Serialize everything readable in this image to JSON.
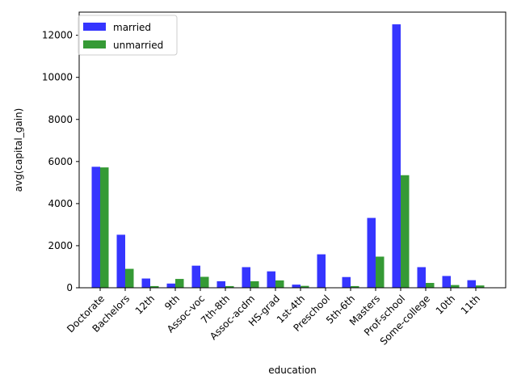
{
  "chart_data": {
    "type": "bar",
    "xlabel": "education",
    "ylabel": "avg(capital_gain)",
    "ylim": [
      0,
      13100
    ],
    "yticks": [
      0,
      2000,
      4000,
      6000,
      8000,
      10000,
      12000
    ],
    "categories": [
      "Doctorate",
      "Bachelors",
      "12th",
      "9th",
      "Assoc-voc",
      "7th-8th",
      "Assoc-acdm",
      "HS-grad",
      "1st-4th",
      "Preschool",
      "5th-6th",
      "Masters",
      "Prof-school",
      "Some-college",
      "10th",
      "11th"
    ],
    "series": [
      {
        "name": "married",
        "color": "#3333ff",
        "values": [
          5750,
          2520,
          440,
          200,
          1050,
          310,
          980,
          780,
          150,
          1590,
          510,
          3320,
          12520,
          980,
          560,
          360
        ]
      },
      {
        "name": "unmarried",
        "color": "#339933",
        "values": [
          5720,
          900,
          80,
          420,
          520,
          80,
          310,
          350,
          90,
          0,
          80,
          1480,
          5350,
          230,
          130,
          110
        ]
      }
    ],
    "legend_position": "upper left",
    "grid": false
  }
}
